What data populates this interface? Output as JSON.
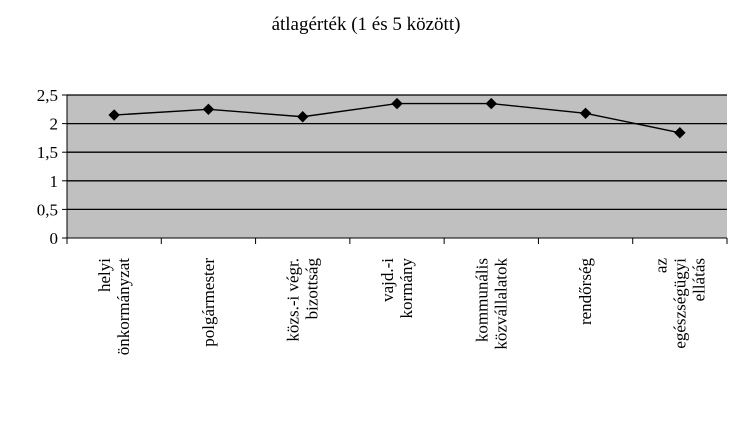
{
  "chart_data": {
    "type": "line",
    "title": "átlagérték (1 és 5 között)",
    "xlabel": "",
    "ylabel": "",
    "ylim": [
      0,
      2.5
    ],
    "y_ticks": [
      "0",
      "0,5",
      "1",
      "1,5",
      "2",
      "2,5"
    ],
    "grid": true,
    "legend": "none",
    "categories": [
      [
        "helyi",
        "önkormányzat"
      ],
      [
        "polgármester"
      ],
      [
        "közs.-i végr.",
        "bizottság"
      ],
      [
        "vajd.-i",
        "kormány"
      ],
      [
        "kommunális",
        "közvállalatok"
      ],
      [
        "rendőrség"
      ],
      [
        "az",
        "egészségügyi",
        "ellátás"
      ]
    ],
    "series": [
      {
        "values": [
          2.15,
          2.25,
          2.12,
          2.35,
          2.35,
          2.18,
          1.84
        ]
      }
    ],
    "colors": {
      "plot_background": "#c0c0c0",
      "line": "#000000",
      "marker": "#000000",
      "gridline": "#000000"
    }
  }
}
